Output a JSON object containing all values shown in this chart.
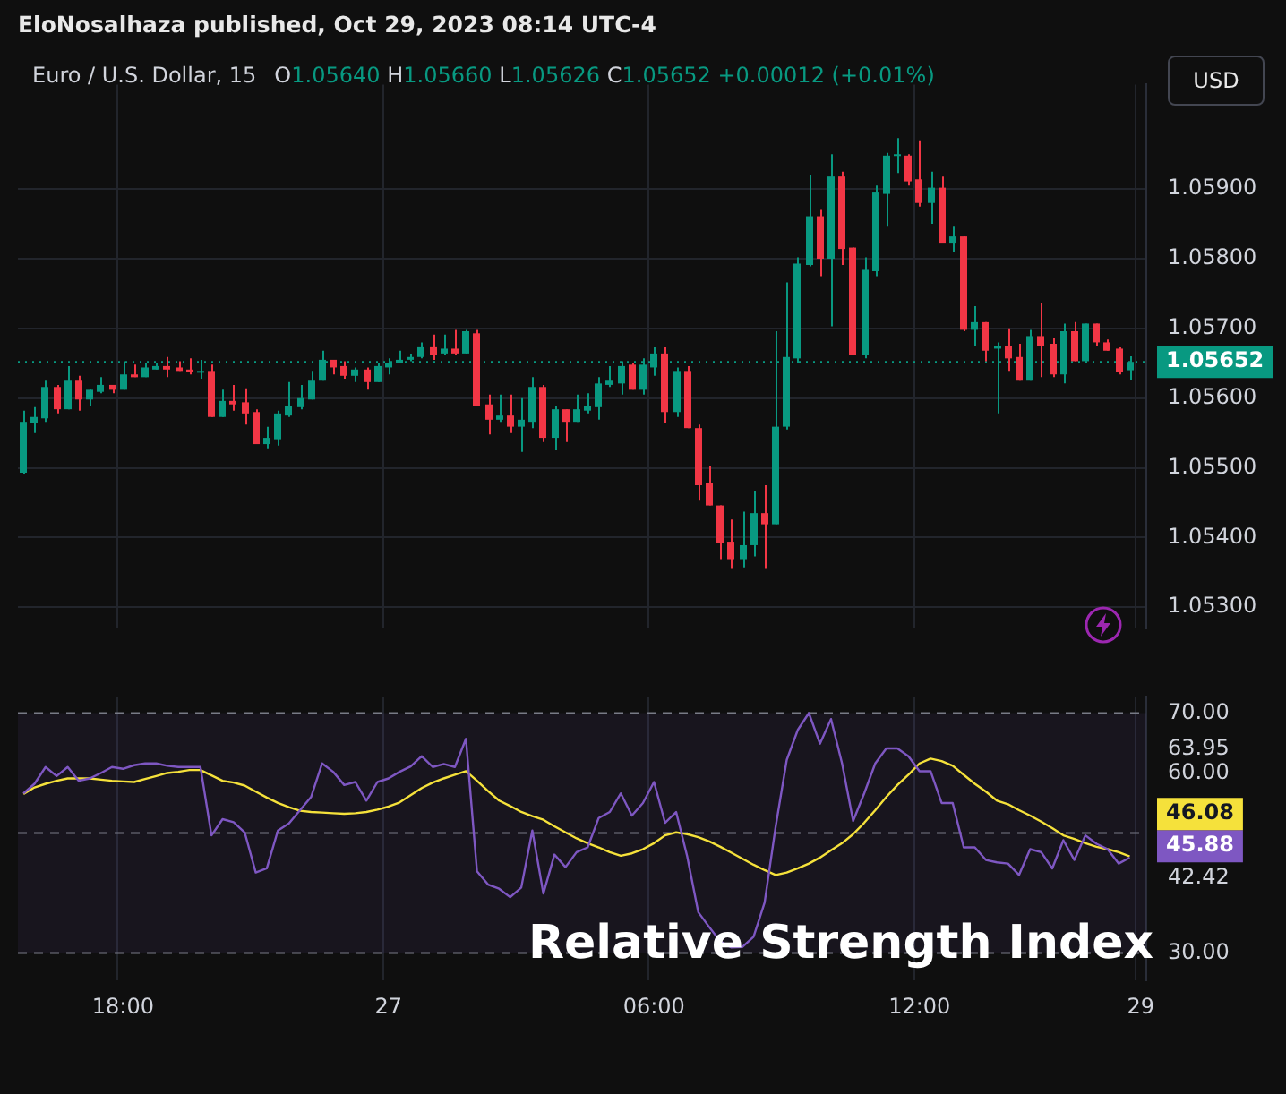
{
  "chart_data": [
    {
      "type": "candlestick",
      "title": "Euro / U.S. Dollar, 15",
      "subtitle": "O1.05640 H1.05660 L1.05626 C1.05652 +0.00012 (+0.01%)",
      "ylabel": "USD",
      "annotations": [
        "EloNosalhaza published, Oct 29, 2023 08:14 UTC-4"
      ],
      "categories": [
        null,
        null,
        null,
        null,
        null,
        null,
        null,
        null,
        null,
        null,
        null,
        null,
        null,
        null,
        null,
        null,
        null,
        null,
        null,
        null,
        null,
        null,
        null,
        null,
        null,
        null,
        null,
        null,
        null,
        null,
        null,
        null,
        null,
        null,
        null,
        null,
        null,
        null,
        null,
        null,
        null,
        null,
        null,
        null,
        null,
        null,
        null,
        null,
        null,
        null,
        null,
        null,
        null,
        null,
        null,
        null,
        null,
        null,
        null,
        null,
        null,
        null,
        null,
        null,
        null,
        null,
        null,
        null,
        null,
        null,
        null,
        null,
        null,
        null,
        null,
        null,
        null,
        null,
        null,
        null,
        null,
        null,
        null,
        null,
        null,
        null,
        null,
        null,
        null,
        null,
        null,
        null,
        null,
        null,
        null,
        null,
        null,
        null,
        null,
        null,
        null,
        null
      ],
      "ohlc": [
        [
          1.05493,
          1.05582,
          1.05491,
          1.05566
        ],
        [
          1.05564,
          1.05587,
          1.0555,
          1.05573
        ],
        [
          1.05571,
          1.05625,
          1.05566,
          1.05616
        ],
        [
          1.05616,
          1.05619,
          1.05578,
          1.05584
        ],
        [
          1.05584,
          1.05646,
          1.05584,
          1.05625
        ],
        [
          1.05625,
          1.05632,
          1.05582,
          1.05598
        ],
        [
          1.05598,
          1.05612,
          1.05589,
          1.05612
        ],
        [
          1.05609,
          1.0563,
          1.05607,
          1.05619
        ],
        [
          1.05619,
          1.05619,
          1.05607,
          1.05612
        ],
        [
          1.05612,
          1.05653,
          1.05612,
          1.05634
        ],
        [
          1.05634,
          1.05648,
          1.0563,
          1.0563
        ],
        [
          1.0563,
          1.05651,
          1.0563,
          1.05644
        ],
        [
          1.05641,
          1.0565,
          1.05641,
          1.05646
        ],
        [
          1.05646,
          1.05659,
          1.0563,
          1.05641
        ],
        [
          1.05644,
          1.05653,
          1.05639,
          1.05639
        ],
        [
          1.05641,
          1.05657,
          1.05634,
          1.05637
        ],
        [
          1.05637,
          1.05655,
          1.05628,
          1.05639
        ],
        [
          1.05639,
          1.05648,
          1.05573,
          1.05573
        ],
        [
          1.05573,
          1.05612,
          1.05573,
          1.05596
        ],
        [
          1.05596,
          1.05619,
          1.05582,
          1.05591
        ],
        [
          1.05594,
          1.05614,
          1.05562,
          1.05578
        ],
        [
          1.0558,
          1.05584,
          1.05534,
          1.05534
        ],
        [
          1.05534,
          1.05559,
          1.05528,
          1.05543
        ],
        [
          1.05541,
          1.05582,
          1.05532,
          1.05578
        ],
        [
          1.05575,
          1.05623,
          1.05573,
          1.05589
        ],
        [
          1.05587,
          1.05619,
          1.05584,
          1.056
        ],
        [
          1.05598,
          1.05639,
          1.05598,
          1.05625
        ],
        [
          1.05625,
          1.05668,
          1.05625,
          1.05655
        ],
        [
          1.05655,
          1.05655,
          1.05634,
          1.05644
        ],
        [
          1.05646,
          1.05653,
          1.05628,
          1.05632
        ],
        [
          1.05632,
          1.05644,
          1.05623,
          1.05641
        ],
        [
          1.05641,
          1.05644,
          1.05612,
          1.05623
        ],
        [
          1.05623,
          1.0565,
          1.05623,
          1.05646
        ],
        [
          1.05644,
          1.05657,
          1.05634,
          1.0565
        ],
        [
          1.0565,
          1.05668,
          1.0565,
          1.05655
        ],
        [
          1.05655,
          1.05664,
          1.05653,
          1.05659
        ],
        [
          1.05659,
          1.0568,
          1.05657,
          1.05673
        ],
        [
          1.05673,
          1.05691,
          1.05655,
          1.05662
        ],
        [
          1.05664,
          1.05691,
          1.05662,
          1.05671
        ],
        [
          1.05671,
          1.05698,
          1.05662,
          1.05664
        ],
        [
          1.05664,
          1.05698,
          1.05664,
          1.05696
        ],
        [
          1.05693,
          1.05698,
          1.05589,
          1.05589
        ],
        [
          1.05591,
          1.05605,
          1.05548,
          1.05569
        ],
        [
          1.05569,
          1.05605,
          1.05566,
          1.05575
        ],
        [
          1.05575,
          1.05605,
          1.0555,
          1.05559
        ],
        [
          1.05559,
          1.056,
          1.05523,
          1.05569
        ],
        [
          1.05566,
          1.0563,
          1.05557,
          1.05616
        ],
        [
          1.05616,
          1.05619,
          1.05537,
          1.05543
        ],
        [
          1.05543,
          1.05589,
          1.05525,
          1.05584
        ],
        [
          1.05584,
          1.05584,
          1.05537,
          1.05566
        ],
        [
          1.05566,
          1.05605,
          1.05566,
          1.05584
        ],
        [
          1.05582,
          1.05607,
          1.05578,
          1.05589
        ],
        [
          1.05587,
          1.0563,
          1.05569,
          1.05621
        ],
        [
          1.05619,
          1.05646,
          1.05616,
          1.05625
        ],
        [
          1.05621,
          1.05653,
          1.05605,
          1.05646
        ],
        [
          1.05648,
          1.0565,
          1.05612,
          1.05612
        ],
        [
          1.05612,
          1.05657,
          1.05605,
          1.05648
        ],
        [
          1.05644,
          1.05673,
          1.05632,
          1.05664
        ],
        [
          1.05664,
          1.05673,
          1.05564,
          1.0558
        ],
        [
          1.0558,
          1.05644,
          1.05573,
          1.05639
        ],
        [
          1.05639,
          1.05646,
          1.05557,
          1.05557
        ],
        [
          1.05557,
          1.05562,
          1.05453,
          1.05475
        ],
        [
          1.05478,
          1.05503,
          1.05446,
          1.05446
        ],
        [
          1.05446,
          1.05446,
          1.05369,
          1.05392
        ],
        [
          1.05394,
          1.05426,
          1.05355,
          1.05369
        ],
        [
          1.05369,
          1.05437,
          1.05357,
          1.05389
        ],
        [
          1.05389,
          1.05466,
          1.05373,
          1.05435
        ],
        [
          1.05435,
          1.05475,
          1.05355,
          1.05419
        ],
        [
          1.05419,
          1.05696,
          1.05419,
          1.05559
        ],
        [
          1.05559,
          1.05766,
          1.05555,
          1.05659
        ],
        [
          1.05657,
          1.05802,
          1.0565,
          1.05793
        ],
        [
          1.05791,
          1.0592,
          1.05789,
          1.05861
        ],
        [
          1.05861,
          1.0587,
          1.05775,
          1.058
        ],
        [
          1.058,
          1.0595,
          1.05703,
          1.05918
        ],
        [
          1.05918,
          1.05925,
          1.05791,
          1.05814
        ],
        [
          1.05816,
          1.05816,
          1.05662,
          1.05662
        ],
        [
          1.05662,
          1.05802,
          1.05657,
          1.05784
        ],
        [
          1.05782,
          1.05905,
          1.05775,
          1.05895
        ],
        [
          1.05893,
          1.05952,
          1.05846,
          1.05948
        ],
        [
          1.05948,
          1.05973,
          1.05923,
          1.0595
        ],
        [
          1.05948,
          1.0595,
          1.05905,
          1.05911
        ],
        [
          1.05914,
          1.0597,
          1.05875,
          1.0588
        ],
        [
          1.0588,
          1.05925,
          1.0585,
          1.05902
        ],
        [
          1.05902,
          1.05918,
          1.05823,
          1.05823
        ],
        [
          1.05823,
          1.05846,
          1.05809,
          1.05832
        ],
        [
          1.05832,
          1.05832,
          1.05696,
          1.05698
        ],
        [
          1.05698,
          1.05732,
          1.05675,
          1.05709
        ],
        [
          1.05709,
          1.05709,
          1.05653,
          1.05668
        ],
        [
          1.05671,
          1.0568,
          1.05578,
          1.05675
        ],
        [
          1.05675,
          1.057,
          1.05639,
          1.05657
        ],
        [
          1.05659,
          1.05678,
          1.05625,
          1.05625
        ],
        [
          1.05625,
          1.05698,
          1.05625,
          1.05689
        ],
        [
          1.05689,
          1.05737,
          1.0563,
          1.05675
        ],
        [
          1.05678,
          1.05687,
          1.0563,
          1.05634
        ],
        [
          1.05634,
          1.05707,
          1.05621,
          1.05696
        ],
        [
          1.05696,
          1.05709,
          1.05653,
          1.05653
        ],
        [
          1.05653,
          1.05707,
          1.05653,
          1.05707
        ],
        [
          1.05707,
          1.05707,
          1.05675,
          1.0568
        ],
        [
          1.0568,
          1.05684,
          1.05668,
          1.05668
        ],
        [
          1.05671,
          1.05673,
          1.05634,
          1.05637
        ],
        [
          1.0564,
          1.0566,
          1.05626,
          1.05652
        ],
        null
      ],
      "colors": [
        "#089981",
        "#089981",
        "#089981",
        "#f23645",
        "#089981",
        "#f23645",
        "#089981",
        "#089981",
        "#f23645",
        "#089981",
        "#f23645",
        "#089981",
        "#089981",
        "#f23645",
        "#f23645",
        "#f23645",
        "#089981",
        "#f23645",
        "#089981",
        "#f23645",
        "#f23645",
        "#f23645",
        "#089981",
        "#089981",
        "#089981",
        "#089981",
        "#089981",
        "#089981",
        "#f23645",
        "#f23645",
        "#089981",
        "#f23645",
        "#089981",
        "#089981",
        "#089981",
        "#089981",
        "#089981",
        "#f23645",
        "#089981",
        "#f23645",
        "#089981",
        "#f23645",
        "#f23645",
        "#089981",
        "#f23645",
        "#089981",
        "#089981",
        "#f23645",
        "#089981",
        "#f23645",
        "#089981",
        "#089981",
        "#089981",
        "#089981",
        "#089981",
        "#f23645",
        "#089981",
        "#089981",
        "#f23645",
        "#089981",
        "#f23645",
        "#f23645",
        "#f23645",
        "#f23645",
        "#f23645",
        "#089981",
        "#089981",
        "#f23645",
        "#089981",
        "#089981",
        "#089981",
        "#089981",
        "#f23645",
        "#089981",
        "#f23645",
        "#f23645",
        "#089981",
        "#089981",
        "#089981",
        "#089981",
        "#f23645",
        "#f23645",
        "#089981",
        "#f23645",
        "#089981",
        "#f23645",
        "#089981",
        "#f23645",
        "#089981",
        "#f23645",
        "#f23645",
        "#089981",
        "#f23645",
        "#f23645",
        "#089981",
        "#f23645",
        "#089981",
        "#f23645",
        "#f23645",
        "#f23645",
        "#089981",
        null
      ],
      "ylim": [
        1.0527,
        1.0605
      ],
      "yticks": [
        {
          "value": 1.053,
          "label": "1.05300"
        },
        {
          "value": 1.054,
          "label": "1.05400"
        },
        {
          "value": 1.055,
          "label": "1.05500"
        },
        {
          "value": 1.056,
          "label": "1.05600"
        },
        {
          "value": 1.057,
          "label": "1.05700"
        },
        {
          "value": 1.058,
          "label": "1.05800"
        },
        {
          "value": 1.059,
          "label": "1.05900"
        }
      ],
      "ref_lines": [
        {
          "axis": "y",
          "value": 1.05652,
          "label": "1.05652",
          "color": "#089981",
          "line_style": "dotted"
        }
      ],
      "grid": true,
      "tick_labels": "y"
    },
    {
      "type": "line",
      "title": "Relative Strength Index",
      "categories": [
        null,
        null,
        null,
        null,
        null,
        null,
        null,
        null,
        null,
        "18:00",
        null,
        null,
        null,
        null,
        null,
        null,
        null,
        null,
        null,
        null,
        null,
        null,
        null,
        null,
        null,
        null,
        null,
        null,
        null,
        null,
        null,
        null,
        null,
        "27",
        null,
        null,
        null,
        null,
        null,
        null,
        null,
        null,
        null,
        null,
        null,
        null,
        null,
        null,
        null,
        null,
        null,
        null,
        null,
        null,
        null,
        null,
        null,
        "06:00",
        null,
        null,
        null,
        null,
        null,
        null,
        null,
        null,
        null,
        null,
        null,
        null,
        null,
        null,
        null,
        null,
        null,
        null,
        null,
        null,
        null,
        null,
        null,
        "12:00",
        null,
        null,
        null,
        null,
        null,
        null,
        null,
        null,
        null,
        null,
        null,
        null,
        null,
        null,
        null,
        null,
        null,
        null,
        null,
        "29"
      ],
      "series": [
        {
          "color": "#7e57c2",
          "values": [
            56.6,
            58.2,
            61.0,
            59.5,
            61.0,
            58.7,
            59.1,
            60.0,
            61.0,
            60.7,
            61.3,
            61.6,
            61.6,
            61.2,
            61.0,
            61.0,
            61.0,
            49.6,
            52.3,
            51.8,
            50.1,
            43.4,
            44.1,
            50.4,
            51.6,
            53.8,
            56.0,
            61.6,
            60.2,
            58.0,
            58.5,
            55.4,
            58.5,
            59.1,
            60.2,
            61.1,
            62.8,
            61.0,
            61.5,
            61.0,
            65.7,
            43.6,
            41.4,
            40.7,
            39.3,
            40.9,
            50.4,
            39.9,
            46.4,
            44.3,
            46.8,
            47.6,
            52.5,
            53.5,
            56.6,
            52.9,
            55.0,
            58.5,
            51.7,
            53.5,
            46.1,
            36.8,
            34.3,
            31.9,
            30.9,
            31.0,
            32.7,
            38.4,
            51.1,
            62.2,
            67.2,
            70.0,
            64.9,
            69.0,
            61.6,
            52.0,
            56.6,
            61.6,
            64.1,
            64.1,
            62.8,
            60.3,
            60.3,
            55.0,
            55.0,
            47.6,
            47.6,
            45.5,
            45.1,
            44.9,
            43.0,
            47.3,
            46.8,
            44.1,
            48.8,
            45.5,
            49.6,
            48.2,
            47.3,
            44.9,
            45.88,
            null
          ],
          "value_labels": [
            null,
            null,
            null,
            null,
            null,
            null,
            null,
            null,
            null,
            null,
            null,
            null,
            null,
            null,
            null,
            null,
            null,
            null,
            null,
            null,
            null,
            null,
            null,
            null,
            null,
            null,
            null,
            null,
            null,
            null,
            null,
            null,
            null,
            null,
            null,
            null,
            null,
            null,
            null,
            null,
            null,
            null,
            null,
            null,
            null,
            null,
            null,
            null,
            null,
            null,
            null,
            null,
            null,
            null,
            null,
            null,
            null,
            null,
            null,
            null,
            null,
            null,
            null,
            null,
            null,
            null,
            null,
            null,
            null,
            null,
            null,
            null,
            null,
            null,
            null,
            null,
            null,
            null,
            null,
            null,
            null,
            null,
            null,
            null,
            null,
            null,
            null,
            null,
            null,
            null,
            null,
            null,
            null,
            null,
            null,
            null,
            null,
            null,
            null,
            null,
            "45.88",
            null
          ]
        },
        {
          "color": "#f5e13b",
          "values": [
            56.5,
            57.6,
            58.2,
            58.7,
            59.1,
            59.1,
            59.1,
            58.9,
            58.7,
            58.6,
            58.5,
            59.0,
            59.5,
            60.0,
            60.2,
            60.5,
            60.5,
            59.6,
            58.7,
            58.4,
            57.9,
            56.9,
            55.9,
            55.0,
            54.3,
            53.7,
            53.5,
            53.4,
            53.3,
            53.2,
            53.3,
            53.5,
            53.9,
            54.4,
            55.1,
            56.3,
            57.5,
            58.4,
            59.1,
            59.7,
            60.3,
            58.7,
            57.0,
            55.4,
            54.5,
            53.5,
            52.8,
            52.2,
            51.1,
            50.1,
            49.1,
            48.3,
            47.6,
            46.8,
            46.2,
            46.6,
            47.3,
            48.3,
            49.6,
            50.1,
            49.8,
            49.3,
            48.6,
            47.7,
            46.7,
            45.7,
            44.7,
            43.8,
            43.0,
            43.4,
            44.1,
            44.9,
            45.9,
            47.1,
            48.3,
            49.8,
            51.7,
            53.8,
            56.0,
            58.0,
            59.7,
            61.6,
            62.4,
            62.0,
            61.2,
            59.7,
            58.2,
            56.9,
            55.4,
            54.8,
            53.8,
            52.9,
            51.9,
            50.8,
            49.6,
            49.0,
            48.3,
            47.7,
            47.3,
            46.8,
            46.08,
            null
          ],
          "value_labels": [
            null,
            null,
            null,
            null,
            null,
            null,
            null,
            null,
            null,
            null,
            null,
            null,
            null,
            null,
            null,
            null,
            null,
            null,
            null,
            null,
            null,
            null,
            null,
            null,
            null,
            null,
            null,
            null,
            null,
            null,
            null,
            null,
            null,
            null,
            null,
            null,
            null,
            null,
            null,
            null,
            null,
            null,
            null,
            null,
            null,
            null,
            null,
            null,
            null,
            null,
            null,
            null,
            null,
            null,
            null,
            null,
            null,
            null,
            null,
            null,
            null,
            null,
            null,
            null,
            null,
            null,
            null,
            null,
            null,
            null,
            null,
            null,
            null,
            null,
            null,
            null,
            null,
            null,
            null,
            null,
            null,
            null,
            null,
            null,
            null,
            null,
            null,
            null,
            null,
            null,
            null,
            null,
            null,
            null,
            null,
            null,
            null,
            null,
            null,
            null,
            "46.08",
            null
          ]
        }
      ],
      "ylim": [
        25.4,
        72.7
      ],
      "yticks": [
        {
          "value": 30,
          "label": "30.00"
        },
        {
          "value": 42.42,
          "label": "42.42"
        },
        {
          "value": 60,
          "label": "60.00"
        },
        {
          "value": 63.95,
          "label": "63.95"
        },
        {
          "value": 70,
          "label": "70.00"
        }
      ],
      "ref_lines": [
        {
          "axis": "y",
          "value": 70,
          "color": "#787b86",
          "line_style": "dashed"
        },
        {
          "axis": "y",
          "value": 50,
          "color": "#787b86",
          "line_style": "dashed"
        },
        {
          "axis": "y",
          "value": 30,
          "color": "#787b86",
          "line_style": "dashed"
        }
      ],
      "bands": [
        {
          "axis": "y",
          "from": 30,
          "to": 70,
          "color": "#7e57c2"
        }
      ],
      "grid": "x"
    }
  ]
}
